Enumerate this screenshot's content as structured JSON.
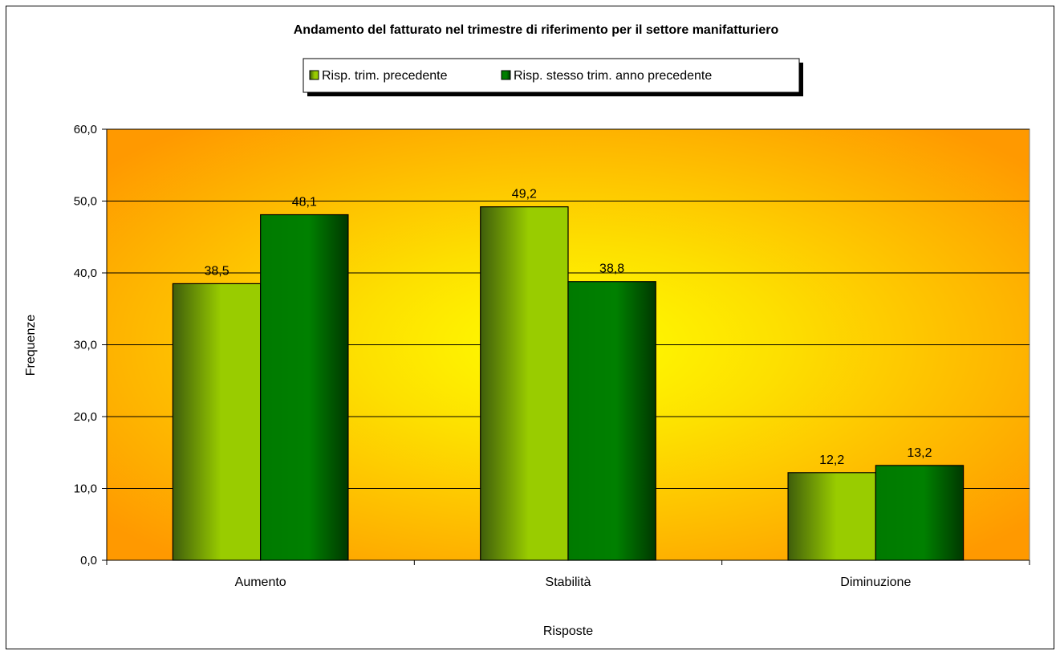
{
  "chart_data": {
    "type": "bar",
    "title": "Andamento del fatturato nel trimestre di riferimento per il settore manifatturiero",
    "xlabel": "Risposte",
    "ylabel": "Frequenze",
    "categories": [
      "Aumento",
      "Stabilità",
      "Diminuzione"
    ],
    "series": [
      {
        "name": "Risp. trim. precedente",
        "values": [
          38.5,
          49.2,
          12.2
        ],
        "labels": [
          "38,5",
          "49,2",
          "12,2"
        ]
      },
      {
        "name": "Risp. stesso trim. anno precedente",
        "values": [
          48.1,
          38.8,
          13.2
        ],
        "labels": [
          "48,1",
          "38,8",
          "13,2"
        ]
      }
    ],
    "ylim": [
      0,
      60
    ],
    "yticks": [
      0,
      10,
      20,
      30,
      40,
      50,
      60
    ],
    "ytick_labels": [
      "0,0",
      "10,0",
      "20,0",
      "30,0",
      "40,0",
      "50,0",
      "60,0"
    ],
    "grid": true,
    "legend_position": "top",
    "colors": {
      "series_1": "#99cc00",
      "series_2": "#008000",
      "plot_center": "#ffff00",
      "plot_edge": "#ff9900"
    }
  }
}
